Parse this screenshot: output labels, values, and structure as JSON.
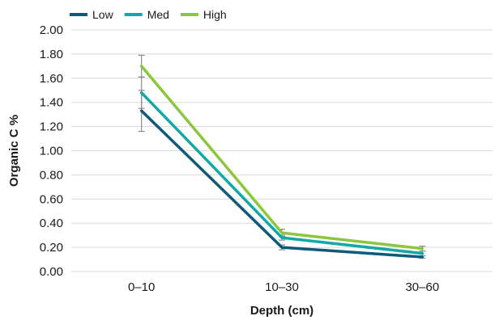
{
  "chart_data": {
    "type": "line",
    "xlabel": "Depth (cm)",
    "ylabel": "Organic C %",
    "categories": [
      "0–10",
      "10–30",
      "30–60"
    ],
    "ylim": [
      0,
      2.0
    ],
    "yticks": [
      "0.00",
      "0.20",
      "0.40",
      "0.60",
      "0.80",
      "1.00",
      "1.20",
      "1.40",
      "1.60",
      "1.80",
      "2.00"
    ],
    "grid": true,
    "legend": "top-left",
    "series": [
      {
        "name": "Low",
        "color": "#0e5a78",
        "values": [
          1.33,
          0.2,
          0.12
        ],
        "error": [
          0.17,
          0.02,
          0.01
        ]
      },
      {
        "name": "Med",
        "color": "#12a8a8",
        "values": [
          1.48,
          0.28,
          0.15
        ],
        "error": [
          0.13,
          0.02,
          0.02
        ]
      },
      {
        "name": "High",
        "color": "#8cc63f",
        "values": [
          1.7,
          0.32,
          0.19
        ],
        "error": [
          0.09,
          0.03,
          0.02
        ]
      }
    ]
  }
}
